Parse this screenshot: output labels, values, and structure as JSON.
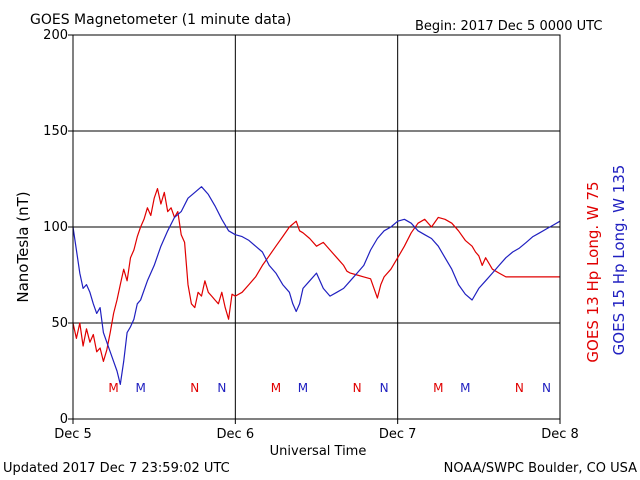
{
  "header": {
    "title": "GOES Magnetometer (1 minute data)",
    "begin": "Begin:  2017 Dec 5 0000 UTC"
  },
  "footer": {
    "updated": "Updated 2017 Dec  7 23:59:02 UTC",
    "credit": "NOAA/SWPC Boulder, CO USA"
  },
  "chart_data": {
    "type": "line",
    "title": "GOES Magnetometer (1 minute data)",
    "xlabel": "Universal Time",
    "ylabel": "NanoTesla (nT)",
    "x_unit": "hours since 2017 Dec 5 0000 UTC",
    "xlim": [
      0,
      72
    ],
    "ylim": [
      0,
      200
    ],
    "y_ticks": [
      0,
      50,
      100,
      150,
      200
    ],
    "x_ticks": [
      {
        "x": 0,
        "label": "Dec 5"
      },
      {
        "x": 24,
        "label": "Dec 6"
      },
      {
        "x": 48,
        "label": "Dec 7"
      },
      {
        "x": 72,
        "label": "Dec 8"
      }
    ],
    "grid": true,
    "colors": {
      "goes13": "#e00000",
      "goes15": "#2020c0",
      "axis": "#000000"
    },
    "series": [
      {
        "name": "GOES 13 Hp  Long. W 75",
        "color": "#e00000",
        "points": [
          [
            0,
            50
          ],
          [
            0.5,
            42
          ],
          [
            1,
            50
          ],
          [
            1.5,
            38
          ],
          [
            2,
            47
          ],
          [
            2.5,
            40
          ],
          [
            3,
            44
          ],
          [
            3.5,
            35
          ],
          [
            4,
            37
          ],
          [
            4.5,
            30
          ],
          [
            5,
            36
          ],
          [
            5.5,
            45
          ],
          [
            6,
            55
          ],
          [
            6.5,
            62
          ],
          [
            7,
            70
          ],
          [
            7.5,
            78
          ],
          [
            8,
            72
          ],
          [
            8.5,
            84
          ],
          [
            9,
            88
          ],
          [
            9.5,
            95
          ],
          [
            10,
            100
          ],
          [
            10.5,
            104
          ],
          [
            11,
            110
          ],
          [
            11.5,
            106
          ],
          [
            12,
            115
          ],
          [
            12.5,
            120
          ],
          [
            13,
            112
          ],
          [
            13.5,
            118
          ],
          [
            14,
            108
          ],
          [
            14.5,
            110
          ],
          [
            15,
            105
          ],
          [
            15.5,
            108
          ],
          [
            16,
            96
          ],
          [
            16.5,
            92
          ],
          [
            17,
            70
          ],
          [
            17.5,
            60
          ],
          [
            18,
            58
          ],
          [
            18.5,
            66
          ],
          [
            19,
            64
          ],
          [
            19.5,
            72
          ],
          [
            20,
            66
          ],
          [
            20.5,
            64
          ],
          [
            21,
            62
          ],
          [
            21.5,
            60
          ],
          [
            22,
            66
          ],
          [
            22.5,
            58
          ],
          [
            23,
            52
          ],
          [
            23.5,
            65
          ],
          [
            24,
            64
          ],
          [
            25,
            66
          ],
          [
            26,
            70
          ],
          [
            27,
            74
          ],
          [
            28,
            80
          ],
          [
            29,
            85
          ],
          [
            30,
            90
          ],
          [
            31,
            95
          ],
          [
            32,
            100
          ],
          [
            33,
            103
          ],
          [
            33.5,
            98
          ],
          [
            34,
            97
          ],
          [
            35,
            94
          ],
          [
            36,
            90
          ],
          [
            37,
            92
          ],
          [
            38,
            88
          ],
          [
            39,
            84
          ],
          [
            40,
            80
          ],
          [
            40.5,
            77
          ],
          [
            41,
            76
          ],
          [
            42,
            75
          ],
          [
            43,
            74
          ],
          [
            44,
            73
          ],
          [
            44.5,
            68
          ],
          [
            45,
            63
          ],
          [
            45.5,
            70
          ],
          [
            46,
            74
          ],
          [
            47,
            78
          ],
          [
            48,
            84
          ],
          [
            49,
            90
          ],
          [
            50,
            97
          ],
          [
            51,
            102
          ],
          [
            52,
            104
          ],
          [
            53,
            100
          ],
          [
            54,
            105
          ],
          [
            55,
            104
          ],
          [
            56,
            102
          ],
          [
            57,
            98
          ],
          [
            58,
            93
          ],
          [
            59,
            90
          ],
          [
            59.5,
            87
          ],
          [
            60,
            85
          ],
          [
            60.5,
            80
          ],
          [
            61,
            84
          ],
          [
            62,
            78
          ],
          [
            63,
            76
          ],
          [
            64,
            74
          ],
          [
            72,
            74
          ]
        ]
      },
      {
        "name": "GOES 15 Hp  Long. W 135",
        "color": "#2020c0",
        "points": [
          [
            0,
            100
          ],
          [
            0.5,
            88
          ],
          [
            1,
            76
          ],
          [
            1.5,
            68
          ],
          [
            2,
            70
          ],
          [
            2.5,
            66
          ],
          [
            3,
            60
          ],
          [
            3.5,
            55
          ],
          [
            4,
            58
          ],
          [
            4.5,
            45
          ],
          [
            5,
            40
          ],
          [
            5.5,
            35
          ],
          [
            6,
            30
          ],
          [
            6.5,
            25
          ],
          [
            7,
            18
          ],
          [
            7.5,
            30
          ],
          [
            8,
            45
          ],
          [
            8.5,
            48
          ],
          [
            9,
            52
          ],
          [
            9.5,
            60
          ],
          [
            10,
            62
          ],
          [
            11,
            72
          ],
          [
            12,
            80
          ],
          [
            13,
            90
          ],
          [
            14,
            98
          ],
          [
            15,
            105
          ],
          [
            16,
            108
          ],
          [
            17,
            115
          ],
          [
            18,
            118
          ],
          [
            19,
            121
          ],
          [
            20,
            117
          ],
          [
            21,
            111
          ],
          [
            22,
            104
          ],
          [
            23,
            98
          ],
          [
            24,
            96
          ],
          [
            25,
            95
          ],
          [
            26,
            93
          ],
          [
            27,
            90
          ],
          [
            28,
            87
          ],
          [
            29,
            80
          ],
          [
            30,
            76
          ],
          [
            31,
            70
          ],
          [
            32,
            66
          ],
          [
            32.5,
            60
          ],
          [
            33,
            56
          ],
          [
            33.5,
            60
          ],
          [
            34,
            68
          ],
          [
            35,
            72
          ],
          [
            36,
            76
          ],
          [
            37,
            68
          ],
          [
            38,
            64
          ],
          [
            39,
            66
          ],
          [
            40,
            68
          ],
          [
            41,
            72
          ],
          [
            42,
            76
          ],
          [
            43,
            80
          ],
          [
            44,
            88
          ],
          [
            45,
            94
          ],
          [
            46,
            98
          ],
          [
            47,
            100
          ],
          [
            48,
            103
          ],
          [
            49,
            104
          ],
          [
            50,
            102
          ],
          [
            51,
            98
          ],
          [
            52,
            96
          ],
          [
            53,
            94
          ],
          [
            54,
            90
          ],
          [
            55,
            84
          ],
          [
            56,
            78
          ],
          [
            57,
            70
          ],
          [
            58,
            65
          ],
          [
            59,
            62
          ],
          [
            60,
            68
          ],
          [
            61,
            72
          ],
          [
            62,
            76
          ],
          [
            63,
            80
          ],
          [
            64,
            84
          ],
          [
            65,
            87
          ],
          [
            66,
            89
          ],
          [
            67,
            92
          ],
          [
            68,
            95
          ],
          [
            69,
            97
          ],
          [
            70,
            99
          ],
          [
            71,
            101
          ],
          [
            72,
            103
          ]
        ]
      }
    ],
    "markers": [
      {
        "x": 6,
        "label": "M",
        "color": "#e00000"
      },
      {
        "x": 18,
        "label": "N",
        "color": "#e00000"
      },
      {
        "x": 30,
        "label": "M",
        "color": "#e00000"
      },
      {
        "x": 42,
        "label": "N",
        "color": "#e00000"
      },
      {
        "x": 54,
        "label": "M",
        "color": "#e00000"
      },
      {
        "x": 66,
        "label": "N",
        "color": "#e00000"
      },
      {
        "x": 10,
        "label": "M",
        "color": "#2020c0"
      },
      {
        "x": 22,
        "label": "N",
        "color": "#2020c0"
      },
      {
        "x": 34,
        "label": "M",
        "color": "#2020c0"
      },
      {
        "x": 46,
        "label": "N",
        "color": "#2020c0"
      },
      {
        "x": 58,
        "label": "M",
        "color": "#2020c0"
      },
      {
        "x": 70,
        "label": "N",
        "color": "#2020c0"
      }
    ],
    "legend": [
      {
        "label": "GOES 13 Hp  Long. W 75",
        "color": "#e00000"
      },
      {
        "label": "GOES 15 Hp  Long. W 135",
        "color": "#2020c0"
      }
    ],
    "legend_position": "right-vertical"
  }
}
